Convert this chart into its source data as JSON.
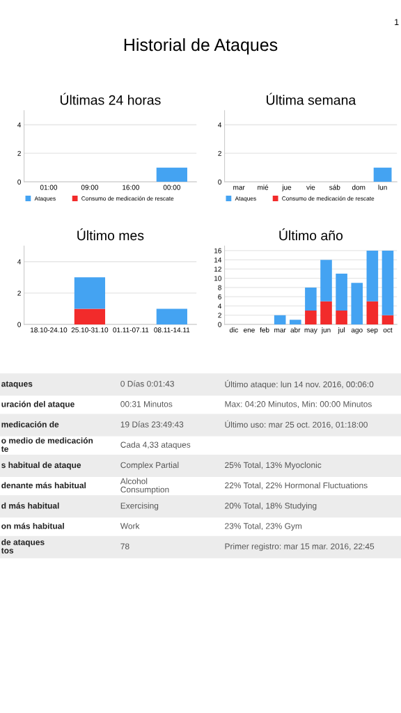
{
  "chart_data": [
    {
      "type": "bar",
      "title": "Últimas 24 horas",
      "categories": [
        "01:00",
        "09:00",
        "16:00",
        "00:00"
      ],
      "stacked": true,
      "ylim": [
        0,
        5
      ],
      "yticks": [
        0,
        2,
        4
      ],
      "grid": "y",
      "legend": "bottom",
      "series": [
        {
          "name": "Consumo de medicación de rescate",
          "color": "#f22b2b",
          "values": [
            null,
            null,
            null,
            null
          ]
        },
        {
          "name": "Ataques",
          "color": "#44a3f2",
          "values": [
            null,
            null,
            null,
            1
          ]
        }
      ]
    },
    {
      "type": "bar",
      "title": "Última semana",
      "categories": [
        "mar",
        "mié",
        "jue",
        "vie",
        "sáb",
        "dom",
        "lun"
      ],
      "stacked": true,
      "ylim": [
        0,
        5
      ],
      "yticks": [
        0,
        2,
        4
      ],
      "grid": "y",
      "legend": "bottom",
      "series": [
        {
          "name": "Consumo de medicación de rescate",
          "color": "#f22b2b",
          "values": [
            null,
            null,
            null,
            null,
            null,
            null,
            null
          ]
        },
        {
          "name": "Ataques",
          "color": "#44a3f2",
          "values": [
            null,
            null,
            null,
            null,
            null,
            null,
            1
          ]
        }
      ]
    },
    {
      "type": "bar",
      "title": "Último mes",
      "categories": [
        "18.10-24.10",
        "25.10-31.10",
        "01.11-07.11",
        "08.11-14.11"
      ],
      "stacked": true,
      "ylim": [
        0,
        5
      ],
      "yticks": [
        0,
        2,
        4
      ],
      "grid": "y",
      "series": [
        {
          "color": "#f22b2b",
          "values": [
            null,
            1,
            null,
            null
          ]
        },
        {
          "color": "#44a3f2",
          "values": [
            null,
            2,
            null,
            1
          ]
        }
      ]
    },
    {
      "type": "bar",
      "title": "Último año",
      "categories": [
        "dic",
        "ene",
        "feb",
        "mar",
        "abr",
        "may",
        "jun",
        "jul",
        "ago",
        "sep",
        "oct"
      ],
      "stacked": true,
      "ylim": [
        0,
        17
      ],
      "yticks": [
        0,
        2,
        4,
        6,
        8,
        10,
        12,
        14,
        16
      ],
      "grid": "y",
      "series": [
        {
          "color": "#f22b2b",
          "values": [
            null,
            null,
            null,
            null,
            null,
            3,
            5,
            3,
            null,
            5,
            2
          ]
        },
        {
          "color": "#44a3f2",
          "values": [
            null,
            null,
            null,
            2,
            1,
            5,
            9,
            8,
            9,
            11,
            14
          ]
        }
      ]
    },
    {
      "type": "other",
      "title": "Historial de Ataques",
      "annotations": [
        "1",
        "ataques",
        "0 Días 0:01:43",
        "Último ataque: lun 14 nov. 2016, 00:06:0",
        "uración del ataque",
        "00:31 Minutos",
        "Max: 04:20 Minutos, Min: 00:00 Minutos",
        "medicación de",
        "19 Días 23:49:43",
        "Último uso: mar 25 oct. 2016, 01:18:00",
        "o medio de medicación\nte",
        "Cada 4,33 ataques",
        null,
        "s habitual de ataque",
        "Complex Partial",
        "25% Total, 13% Myoclonic",
        "denante más habitual",
        "Alcohol\nConsumption",
        "22% Total, 22% Hormonal Fluctuations",
        "d más habitual",
        "Exercising",
        "20% Total, 18% Studying",
        "on más habitual",
        "Work",
        "23% Total, 23% Gym",
        "de ataques\ntos",
        "78",
        "Primer registro: mar 15 mar. 2016, 22:45"
      ]
    }
  ]
}
